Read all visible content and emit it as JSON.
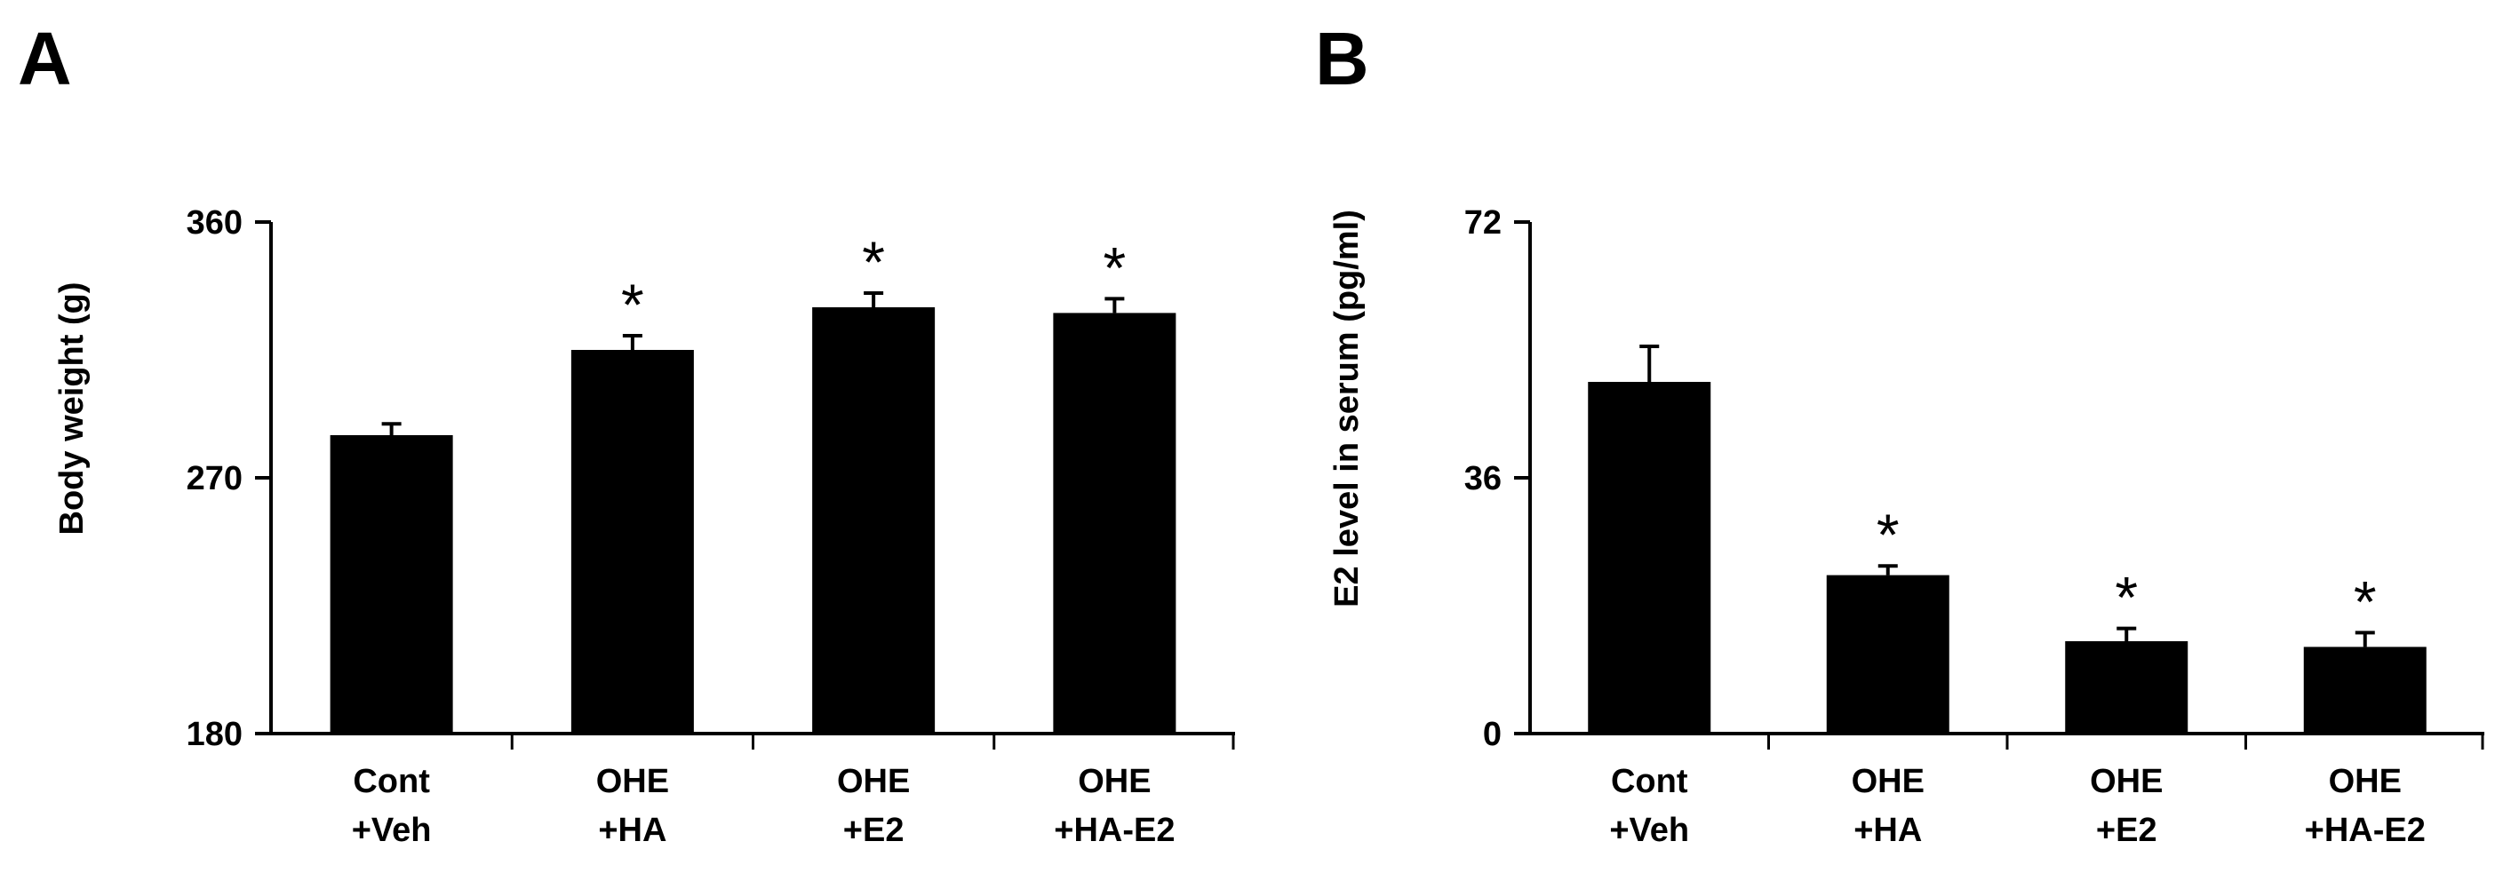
{
  "panels": [
    {
      "label": "A",
      "chart_data": {
        "type": "bar",
        "categories": [
          [
            "Cont",
            "+Veh"
          ],
          [
            "OHE",
            "+HA"
          ],
          [
            "OHE",
            "+E2"
          ],
          [
            "OHE",
            "+HA-E2"
          ]
        ],
        "values": [
          285,
          315,
          330,
          328
        ],
        "errors": [
          4,
          5,
          5,
          5
        ],
        "significance": [
          "",
          "*",
          "*",
          "*"
        ],
        "ylabel": "Body weight (g)",
        "ylim": [
          180,
          360
        ],
        "yticks": [
          180,
          270,
          360
        ],
        "bar_color": "#000000",
        "grid": false
      }
    },
    {
      "label": "B",
      "chart_data": {
        "type": "bar",
        "categories": [
          [
            "Cont",
            "+Veh"
          ],
          [
            "OHE",
            "+HA"
          ],
          [
            "OHE",
            "+E2"
          ],
          [
            "OHE",
            "+HA-E2"
          ]
        ],
        "values": [
          49.5,
          22.3,
          13.0,
          12.2
        ],
        "errors": [
          5,
          1.3,
          1.8,
          2.0
        ],
        "significance": [
          "",
          "*",
          "*",
          "*"
        ],
        "ylabel": "E2 level in serum (pg/ml)",
        "ylim": [
          0,
          72
        ],
        "yticks": [
          0,
          36,
          72
        ],
        "bar_color": "#000000",
        "grid": false
      }
    }
  ]
}
